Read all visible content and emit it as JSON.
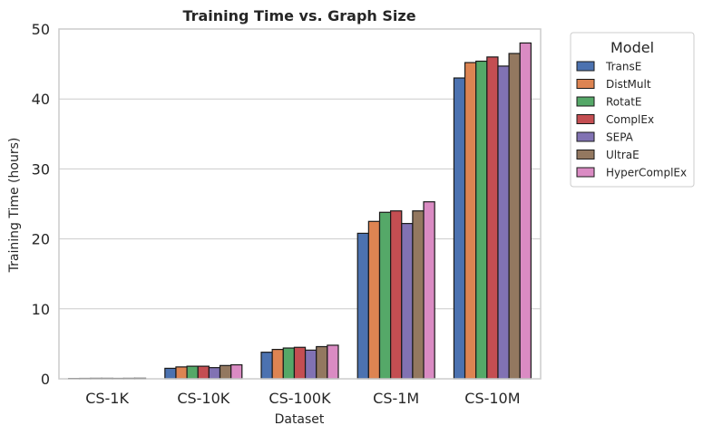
{
  "chart_data": {
    "type": "bar",
    "title": "Training Time vs. Graph Size",
    "xlabel": "Dataset",
    "ylabel": "Training Time (hours)",
    "ylim": [
      0,
      50
    ],
    "yticks": [
      0,
      10,
      20,
      30,
      40,
      50
    ],
    "grid": true,
    "legend_title": "Model",
    "legend_position": "outside-top-right",
    "categories": [
      "CS-1K",
      "CS-10K",
      "CS-100K",
      "CS-1M",
      "CS-10M"
    ],
    "series": [
      {
        "name": "TransE",
        "color": "#4c72b0",
        "values": [
          0.05,
          1.5,
          3.8,
          20.8,
          43.0
        ]
      },
      {
        "name": "DistMult",
        "color": "#dd8452",
        "values": [
          0.06,
          1.7,
          4.2,
          22.5,
          45.2
        ]
      },
      {
        "name": "RotatE",
        "color": "#55a868",
        "values": [
          0.07,
          1.8,
          4.4,
          23.8,
          45.4
        ]
      },
      {
        "name": "ComplEx",
        "color": "#c44e52",
        "values": [
          0.07,
          1.8,
          4.5,
          24.0,
          46.0
        ]
      },
      {
        "name": "SEPA",
        "color": "#8172b3",
        "values": [
          0.06,
          1.6,
          4.1,
          22.2,
          44.7
        ]
      },
      {
        "name": "UltraE",
        "color": "#937860",
        "values": [
          0.07,
          1.9,
          4.6,
          24.0,
          46.5
        ]
      },
      {
        "name": "HyperComplEx",
        "color": "#da8bc3",
        "values": [
          0.08,
          2.0,
          4.8,
          25.3,
          48.0
        ]
      }
    ]
  }
}
